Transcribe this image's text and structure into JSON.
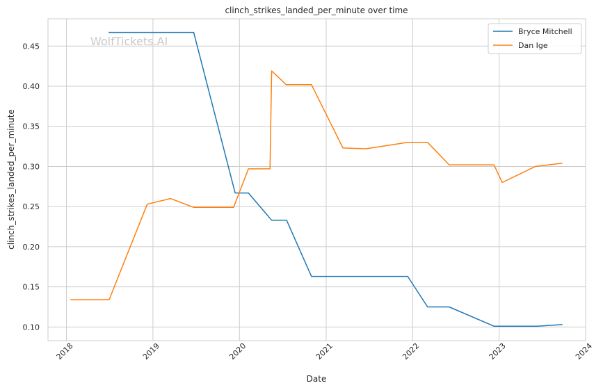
{
  "watermark": "WolfTickets.AI",
  "chart_data": {
    "type": "line",
    "title": "clinch_strikes_landed_per_minute over time",
    "xlabel": "Date",
    "ylabel": "clinch_strikes_landed_per_minute",
    "x_ticks": [
      "2018",
      "2019",
      "2020",
      "2021",
      "2022",
      "2023",
      "2024"
    ],
    "y_ticks": [
      "0.10",
      "0.15",
      "0.20",
      "0.25",
      "0.30",
      "0.35",
      "0.40",
      "0.45"
    ],
    "xlim": [
      "2017-10-15",
      "2024-01-01"
    ],
    "ylim": [
      0.083,
      0.484
    ],
    "grid": true,
    "legend_position": "top-right",
    "series": [
      {
        "name": "Bryce Mitchell",
        "color": "#1f77b4",
        "points": [
          {
            "x": "2018-06-30",
            "y": 0.467
          },
          {
            "x": "2018-12-08",
            "y": 0.467
          },
          {
            "x": "2019-06-22",
            "y": 0.467
          },
          {
            "x": "2019-12-14",
            "y": 0.267
          },
          {
            "x": "2020-02-08",
            "y": 0.267
          },
          {
            "x": "2020-05-16",
            "y": 0.233
          },
          {
            "x": "2020-07-18",
            "y": 0.233
          },
          {
            "x": "2020-10-31",
            "y": 0.163
          },
          {
            "x": "2021-11-20",
            "y": 0.163
          },
          {
            "x": "2021-12-11",
            "y": 0.163
          },
          {
            "x": "2022-03-05",
            "y": 0.125
          },
          {
            "x": "2022-06-04",
            "y": 0.125
          },
          {
            "x": "2022-12-10",
            "y": 0.101
          },
          {
            "x": "2023-06-10",
            "y": 0.101
          },
          {
            "x": "2023-09-23",
            "y": 0.103
          }
        ]
      },
      {
        "name": "Dan Ige",
        "color": "#ff7f0e",
        "points": [
          {
            "x": "2018-01-20",
            "y": 0.134
          },
          {
            "x": "2018-06-30",
            "y": 0.134
          },
          {
            "x": "2018-12-08",
            "y": 0.253
          },
          {
            "x": "2019-03-16",
            "y": 0.26
          },
          {
            "x": "2019-06-22",
            "y": 0.249
          },
          {
            "x": "2019-12-07",
            "y": 0.249
          },
          {
            "x": "2020-02-08",
            "y": 0.297
          },
          {
            "x": "2020-05-09",
            "y": 0.297
          },
          {
            "x": "2020-05-16",
            "y": 0.419
          },
          {
            "x": "2020-07-16",
            "y": 0.402
          },
          {
            "x": "2020-10-31",
            "y": 0.402
          },
          {
            "x": "2021-03-13",
            "y": 0.323
          },
          {
            "x": "2021-06-19",
            "y": 0.322
          },
          {
            "x": "2021-12-11",
            "y": 0.33
          },
          {
            "x": "2022-03-05",
            "y": 0.33
          },
          {
            "x": "2022-06-04",
            "y": 0.302
          },
          {
            "x": "2022-12-10",
            "y": 0.302
          },
          {
            "x": "2023-01-14",
            "y": 0.28
          },
          {
            "x": "2023-06-03",
            "y": 0.3
          },
          {
            "x": "2023-09-23",
            "y": 0.304
          }
        ]
      }
    ]
  }
}
